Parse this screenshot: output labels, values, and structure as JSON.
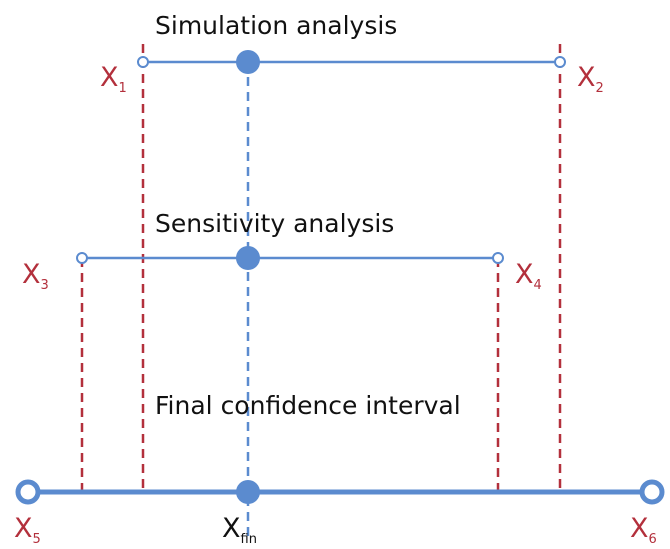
{
  "sections": [
    {
      "title": "Simulation analysis",
      "left": {
        "main": "X",
        "sub": "1"
      },
      "right": {
        "main": "X",
        "sub": "2"
      }
    },
    {
      "title": "Sensitivity analysis",
      "left": {
        "main": "X",
        "sub": "3"
      },
      "right": {
        "main": "X",
        "sub": "4"
      }
    },
    {
      "title": "Final confidence interval",
      "left": {
        "main": "X",
        "sub": "5"
      },
      "right": {
        "main": "X",
        "sub": "6"
      }
    }
  ],
  "center": {
    "main": "X",
    "sub": "fin"
  }
}
